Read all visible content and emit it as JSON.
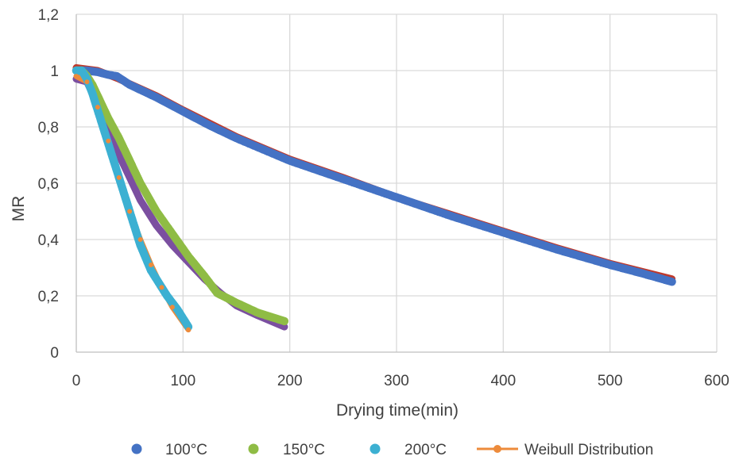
{
  "chart_data": {
    "type": "line",
    "title": "",
    "xlabel": "Drying time(min)",
    "ylabel": "MR",
    "xlim": [
      0,
      600
    ],
    "ylim": [
      0,
      1.2
    ],
    "x_ticks": [
      0,
      100,
      200,
      300,
      400,
      500,
      600
    ],
    "y_ticks": [
      0,
      0.2,
      0.4,
      0.6,
      0.8,
      1.0,
      1.2
    ],
    "x_tick_labels": [
      "0",
      "100",
      "200",
      "300",
      "400",
      "500",
      "600"
    ],
    "y_tick_labels": [
      "0",
      "0,2",
      "0,4",
      "0,6",
      "0,8",
      "1",
      "1,2"
    ],
    "grid": true,
    "legend_position": "bottom",
    "colors": {
      "s100": "#4472C4",
      "s150": "#8FBC45",
      "s200": "#3CB0D2",
      "weibull": "#ED8B3B",
      "weibull_100": "#C0392B",
      "weibull_150": "#7B4FA0"
    },
    "series": [
      {
        "name": "100°C",
        "style": "markers",
        "x": [
          0,
          10,
          20,
          30,
          38,
          50,
          75,
          100,
          125,
          150,
          175,
          200,
          250,
          300,
          350,
          400,
          450,
          500,
          530,
          558
        ],
        "y": [
          1.0,
          1.0,
          0.995,
          0.985,
          0.98,
          0.95,
          0.905,
          0.855,
          0.805,
          0.76,
          0.72,
          0.68,
          0.615,
          0.55,
          0.485,
          0.425,
          0.365,
          0.31,
          0.28,
          0.25
        ]
      },
      {
        "name": "150°C",
        "style": "markers",
        "x": [
          0,
          5,
          10,
          15,
          20,
          30,
          40,
          50,
          60,
          75,
          90,
          105,
          120,
          132,
          150,
          170,
          195
        ],
        "y": [
          1.0,
          1.0,
          0.98,
          0.95,
          0.91,
          0.83,
          0.76,
          0.68,
          0.6,
          0.5,
          0.42,
          0.34,
          0.27,
          0.21,
          0.175,
          0.14,
          0.11
        ]
      },
      {
        "name": "200°C",
        "style": "markers",
        "x": [
          0,
          5,
          10,
          15,
          20,
          30,
          40,
          50,
          60,
          70,
          75,
          85,
          95,
          105
        ],
        "y": [
          1.0,
          1.0,
          0.97,
          0.92,
          0.86,
          0.74,
          0.62,
          0.5,
          0.38,
          0.29,
          0.26,
          0.2,
          0.15,
          0.09
        ]
      },
      {
        "name": "Weibull Distribution",
        "style": "line",
        "x": [
          0,
          10,
          20,
          30,
          40,
          50,
          60,
          70,
          80,
          90,
          105
        ],
        "y": [
          0.98,
          0.96,
          0.87,
          0.75,
          0.62,
          0.5,
          0.4,
          0.31,
          0.23,
          0.16,
          0.08
        ]
      }
    ],
    "fit_lines": [
      {
        "color_key": "weibull_100",
        "x": [
          0,
          20,
          40,
          75,
          100,
          150,
          200,
          250,
          300,
          350,
          400,
          450,
          500,
          558
        ],
        "y": [
          1.01,
          1.0,
          0.97,
          0.91,
          0.86,
          0.765,
          0.685,
          0.62,
          0.55,
          0.49,
          0.43,
          0.37,
          0.315,
          0.26
        ]
      },
      {
        "color_key": "weibull_150",
        "x": [
          0,
          10,
          20,
          30,
          40,
          50,
          60,
          75,
          90,
          105,
          120,
          135,
          150,
          170,
          195
        ],
        "y": [
          0.97,
          0.96,
          0.88,
          0.79,
          0.7,
          0.62,
          0.54,
          0.45,
          0.38,
          0.32,
          0.26,
          0.21,
          0.165,
          0.13,
          0.09
        ]
      }
    ]
  }
}
